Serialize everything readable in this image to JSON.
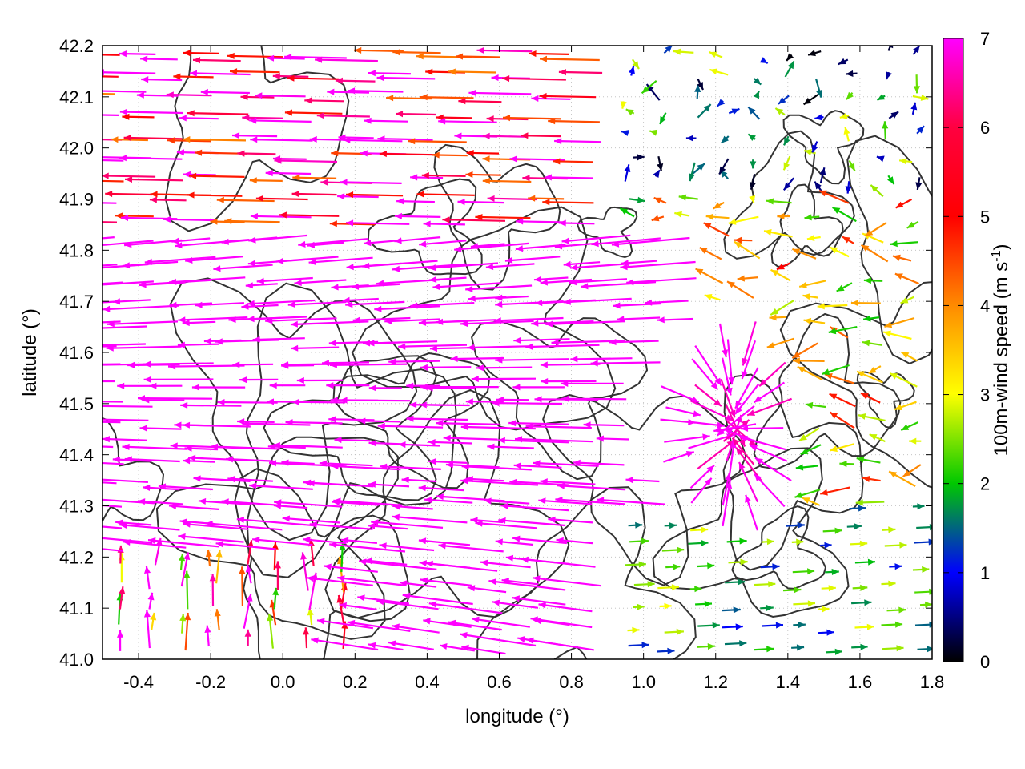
{
  "chart_data": {
    "type": "vector-field",
    "title": "",
    "xlabel": "longitude (°)",
    "ylabel": "latitude (°)",
    "xlim": [
      -0.5,
      1.8
    ],
    "ylim": [
      41.0,
      42.2
    ],
    "xticks": [
      "-0.4",
      "-0.2",
      "0.0",
      "0.2",
      "0.4",
      "0.6",
      "0.8",
      "1.0",
      "1.2",
      "1.4",
      "1.6",
      "1.8"
    ],
    "yticks": [
      "41.0",
      "41.1",
      "41.2",
      "41.3",
      "41.4",
      "41.5",
      "41.6",
      "41.7",
      "41.8",
      "41.9",
      "42.0",
      "42.1",
      "42.2"
    ],
    "grid": true,
    "colorbar": {
      "label": "100m-wind speed (m s-1)",
      "label_main": "100m-wind speed (m s",
      "label_sup": "-1",
      "label_end": ")",
      "range": [
        0,
        7
      ],
      "ticks": [
        "0",
        "1",
        "2",
        "3",
        "4",
        "5",
        "6",
        "7"
      ],
      "palette": [
        "#000000",
        "#0000ff",
        "#00c800",
        "#ffff00",
        "#ff8c00",
        "#ff0000",
        "#ff00ff"
      ]
    },
    "contour_color": "#333333",
    "wind_regions": [
      {
        "region": "north-west band (lat 41.85-42.2, lon -0.5-0.9)",
        "direction": "westward",
        "speed_range": [
          4,
          7
        ]
      },
      {
        "region": "central band (lat 41.25-41.85, lon -0.5-1.2)",
        "direction": "westward",
        "speed_range": [
          6,
          7
        ]
      },
      {
        "region": "convergence near (1.25, 41.45)",
        "direction": "radial inflow",
        "speed_range": [
          5,
          7
        ]
      },
      {
        "region": "north-east (lat 41.9-42.2, lon 0.9-1.8)",
        "direction": "variable",
        "speed_range": [
          0,
          3
        ]
      },
      {
        "region": "south-east (lat 41.0-41.3, lon 0.9-1.8)",
        "direction": "eastward",
        "speed_range": [
          1,
          3
        ]
      },
      {
        "region": "south-west corner (lat 41.0-41.2, lon -0.5-0.2)",
        "direction": "northward",
        "speed_range": [
          2,
          7
        ]
      }
    ]
  }
}
